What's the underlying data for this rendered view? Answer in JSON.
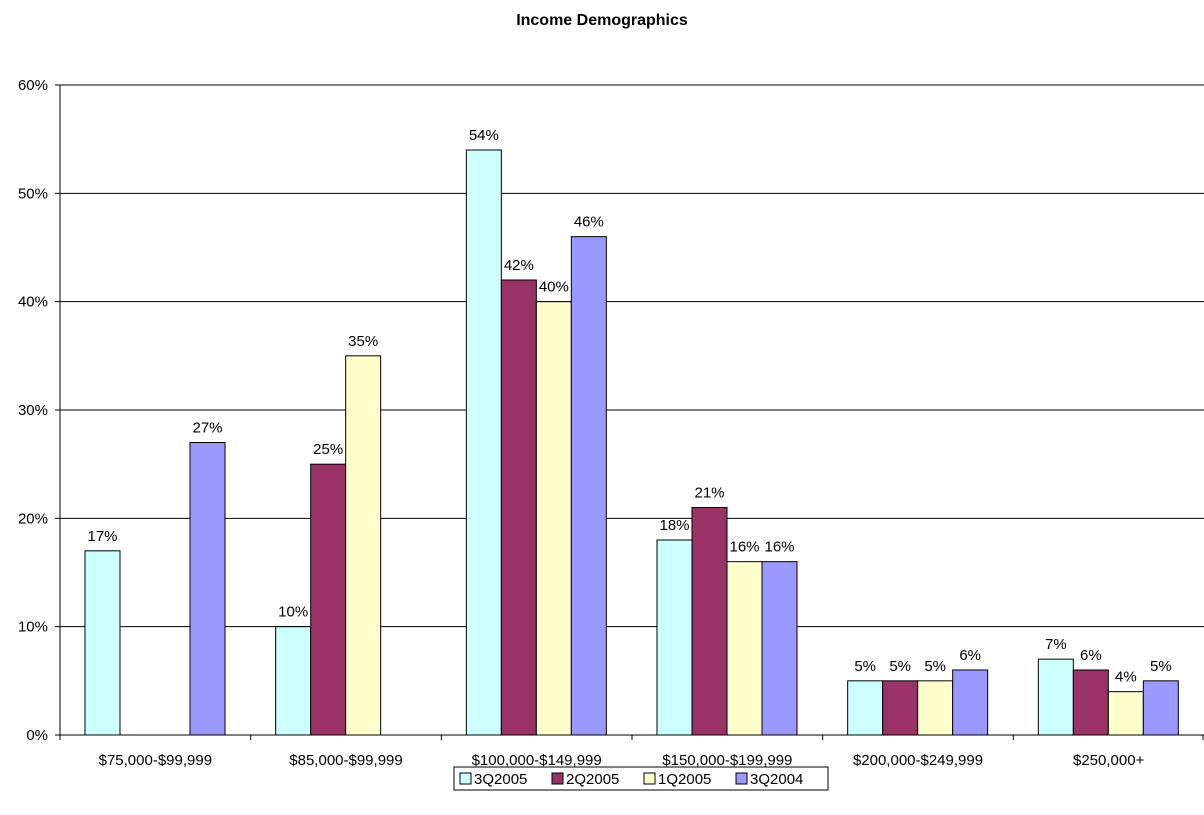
{
  "chart_data": {
    "type": "bar",
    "title": "Income Demographics",
    "xlabel": "",
    "ylabel": "",
    "categories": [
      "$75,000-$99,999",
      "$85,000-$99,999",
      "$100,000-$149,999",
      "$150,000-$199,999",
      "$200,000-$249,999",
      "$250,000+"
    ],
    "series": [
      {
        "name": "3Q2005",
        "color": "#ccffff",
        "values": [
          17,
          10,
          54,
          18,
          5,
          7
        ],
        "labels": [
          "17%",
          "10%",
          "54%",
          "18%",
          "5%",
          "7%"
        ]
      },
      {
        "name": "2Q2005",
        "color": "#993366",
        "values": [
          null,
          25,
          42,
          21,
          5,
          6
        ],
        "labels": [
          "",
          "25%",
          "42%",
          "21%",
          "5%",
          "6%"
        ]
      },
      {
        "name": "1Q2005",
        "color": "#ffffcc",
        "values": [
          null,
          35,
          40,
          16,
          5,
          4
        ],
        "labels": [
          "",
          "35%",
          "40%",
          "16%",
          "5%",
          "4%"
        ]
      },
      {
        "name": "3Q2004",
        "color": "#9999ff",
        "values": [
          27,
          null,
          46,
          16,
          6,
          5
        ],
        "labels": [
          "27%",
          "",
          "46%",
          "16%",
          "6%",
          "5%"
        ]
      }
    ],
    "ylim": [
      0,
      60
    ],
    "yticks": [
      0,
      10,
      20,
      30,
      40,
      50,
      60
    ],
    "ytick_labels": [
      "0%",
      "10%",
      "20%",
      "30%",
      "40%",
      "50%",
      "60%"
    ],
    "grid": true,
    "legend_position": "bottom"
  }
}
